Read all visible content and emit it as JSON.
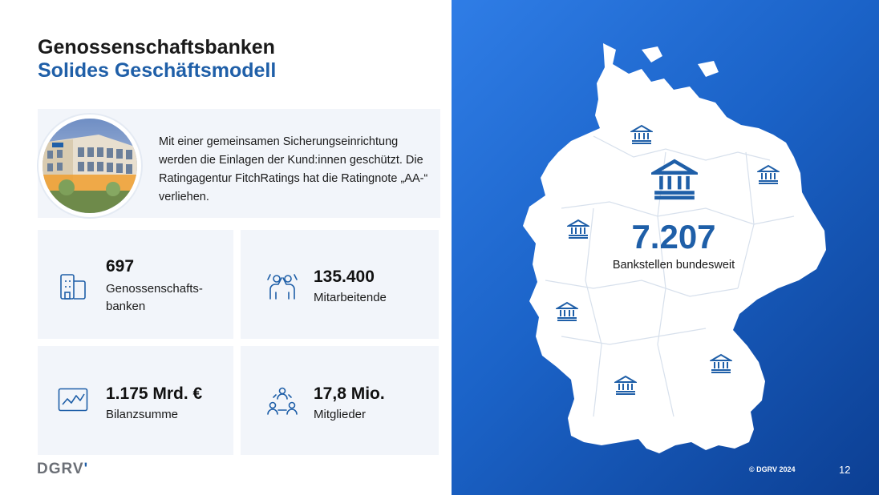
{
  "header": {
    "title": "Genossenschaftsbanken",
    "subtitle": "Solides Geschäftsmodell"
  },
  "intro": {
    "text": "Mit einer gemeinsamen Sicherungseinrichtung werden die Einlagen der Kund:innen geschützt. Die Ratingagentur FitchRatings hat die Ratingnote „AA-“ verliehen."
  },
  "stats": {
    "banks": {
      "value": "697",
      "label_line1": "Genossenschafts-",
      "label_line2": "banken",
      "icon": "building-icon"
    },
    "employees": {
      "value": "135.400",
      "label": "Mitarbeitende",
      "icon": "team-icon"
    },
    "balance": {
      "value": "1.175 Mrd. €",
      "label": "Bilanzsumme",
      "icon": "chart-icon"
    },
    "members": {
      "value": "17,8 Mio.",
      "label": "Mitglieder",
      "icon": "members-icon"
    }
  },
  "map": {
    "number": "7.207",
    "caption": "Bankstellen bundesweit",
    "marker_icon": "bank-icon"
  },
  "footer": {
    "logo_text": "DGRV",
    "copyright": "© DGRV 2024",
    "page": "12"
  },
  "colors": {
    "accent": "#1f5fa8",
    "card_bg": "#f2f5fa",
    "panel_gradient_start": "#2f7de6",
    "panel_gradient_end": "#0c3f93"
  }
}
